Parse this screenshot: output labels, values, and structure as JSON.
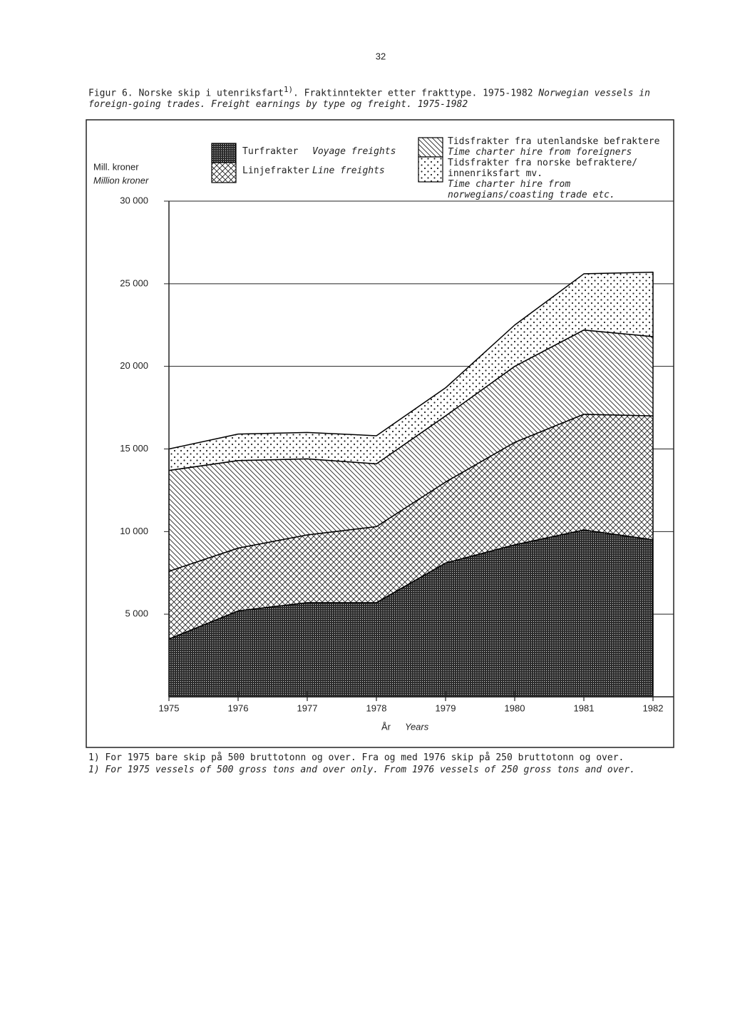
{
  "page_number": "32",
  "caption": {
    "no": "Figur 6. Norske skip i utenriksfart",
    "note": "1)",
    "no_rest": ". Fraktinntekter etter frakttype. 1975-1982",
    "en": "Norwegian vessels in foreign-going trades. Freight earnings by type og freight. 1975-1982"
  },
  "chart_data": {
    "type": "stacked-area",
    "y_label_no": "Mill. kroner",
    "y_label_en": "Million kroner",
    "x_label_no": "År",
    "x_label_en": "Years",
    "x": [
      1975,
      1976,
      1977,
      1978,
      1979,
      1980,
      1981,
      1982
    ],
    "xlim": [
      1975,
      1982
    ],
    "xticks": [
      1975,
      1976,
      1977,
      1978,
      1979,
      1980,
      1981,
      1982
    ],
    "ylim": [
      0,
      30000
    ],
    "yticks": [
      {
        "value": 5000,
        "label": "5 000"
      },
      {
        "value": 10000,
        "label": "10 000"
      },
      {
        "value": 15000,
        "label": "15 000"
      },
      {
        "value": 20000,
        "label": "20 000"
      },
      {
        "value": 25000,
        "label": "25 000"
      },
      {
        "value": 30000,
        "label": "30 000"
      }
    ],
    "grid": true,
    "series": [
      {
        "name": "Turfrakter",
        "name_en": "Voyage freights",
        "color": "#000000",
        "pattern": "dense-dots",
        "values": [
          3500,
          5200,
          5700,
          5700,
          8100,
          9200,
          10100,
          9500
        ]
      },
      {
        "name": "Linjefrakter",
        "name_en": "Line freights",
        "color": "#000000",
        "pattern": "crosshatch",
        "values": [
          4100,
          3800,
          4100,
          4600,
          4900,
          6200,
          7000,
          7500
        ]
      },
      {
        "name": "Tidsfrakter fra utenlandske befraktere",
        "name_en": "Time charter hire from foreigners",
        "color": "#000000",
        "pattern": "hatch",
        "values": [
          6100,
          5300,
          4600,
          3800,
          4000,
          4600,
          5100,
          4800
        ]
      },
      {
        "name": "Tidsfrakter fra norske befraktere/ innenriksfart mv.",
        "name_en": "Time charter hire from norwegians/coasting trade etc.",
        "color": "#000000",
        "pattern": "dots",
        "values": [
          1300,
          1600,
          1600,
          1700,
          1700,
          2500,
          3400,
          3900
        ]
      }
    ]
  },
  "footnotes": {
    "no": "1) For 1975 bare skip på 500 bruttotonn og over. Fra og med 1976 skip på 250 bruttotonn og over.",
    "en": "1) For 1975 vessels of 500 gross tons and over only. From 1976 vessels of 250 gross tons and over."
  }
}
